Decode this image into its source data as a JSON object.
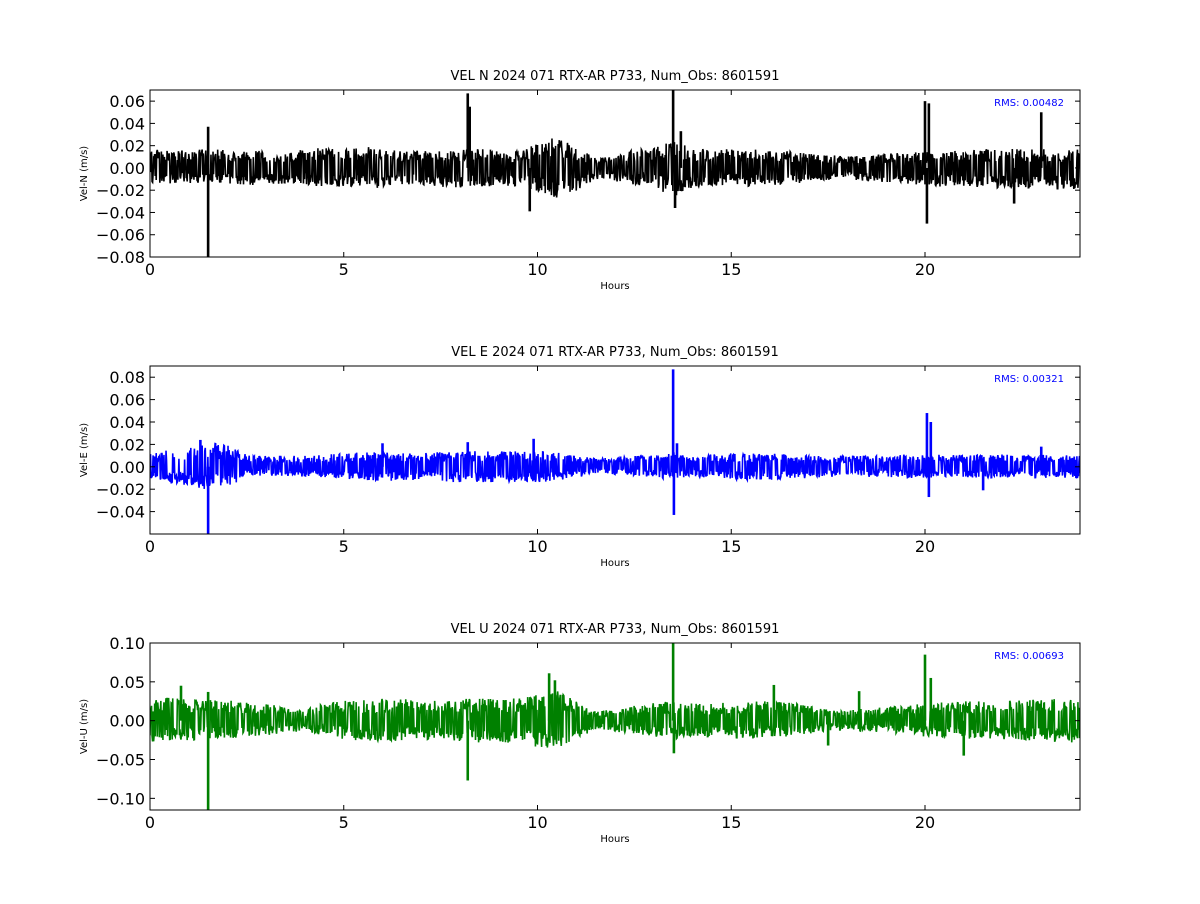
{
  "chart_data": [
    {
      "type": "line",
      "title": "VEL N 2024 071 RTX-AR  P733, Num_Obs: 8601591",
      "xlabel": "Hours",
      "ylabel": "Vel-N (m/s)",
      "xlim": [
        0,
        24
      ],
      "ylim": [
        -0.08,
        0.07
      ],
      "xticks": [
        0,
        5,
        10,
        15,
        20
      ],
      "yticks": [
        -0.08,
        -0.06,
        -0.04,
        -0.02,
        0.0,
        0.02,
        0.04,
        0.06
      ],
      "ytick_labels": [
        "−0.08",
        "−0.06",
        "−0.04",
        "−0.02",
        "0.00",
        "0.02",
        "0.04",
        "0.06"
      ],
      "color": "#000000",
      "annotation": "RMS:  0.00482",
      "rms": 0.00482,
      "envelope": {
        "x": [
          0,
          0.5,
          1,
          1.5,
          2,
          2.5,
          3,
          3.5,
          4,
          4.5,
          5,
          5.5,
          6,
          6.5,
          7,
          7.5,
          8,
          8.5,
          9,
          9.5,
          10,
          10.5,
          11,
          11.5,
          12,
          12.5,
          13,
          13.5,
          14,
          14.5,
          15,
          15.5,
          16,
          16.5,
          17,
          17.5,
          18,
          18.5,
          19,
          19.5,
          20,
          20.5,
          21,
          21.5,
          22,
          22.5,
          23,
          23.5,
          24
        ],
        "upper": [
          0.017,
          0.016,
          0.016,
          0.017,
          0.016,
          0.016,
          0.015,
          0.014,
          0.017,
          0.018,
          0.018,
          0.019,
          0.019,
          0.015,
          0.016,
          0.016,
          0.017,
          0.017,
          0.016,
          0.015,
          0.022,
          0.028,
          0.02,
          0.009,
          0.013,
          0.016,
          0.018,
          0.025,
          0.018,
          0.016,
          0.017,
          0.017,
          0.016,
          0.015,
          0.013,
          0.012,
          0.011,
          0.012,
          0.013,
          0.014,
          0.015,
          0.016,
          0.016,
          0.017,
          0.017,
          0.017,
          0.017,
          0.017,
          0.017
        ],
        "lower": [
          -0.013,
          -0.014,
          -0.014,
          -0.014,
          -0.014,
          -0.016,
          -0.015,
          -0.014,
          -0.015,
          -0.017,
          -0.017,
          -0.018,
          -0.018,
          -0.016,
          -0.016,
          -0.017,
          -0.018,
          -0.017,
          -0.016,
          -0.016,
          -0.022,
          -0.027,
          -0.021,
          -0.01,
          -0.012,
          -0.015,
          -0.018,
          -0.026,
          -0.018,
          -0.016,
          -0.016,
          -0.017,
          -0.016,
          -0.015,
          -0.012,
          -0.011,
          -0.01,
          -0.012,
          -0.013,
          -0.014,
          -0.016,
          -0.017,
          -0.017,
          -0.018,
          -0.018,
          -0.018,
          -0.018,
          -0.019,
          -0.019
        ]
      },
      "spikes": [
        {
          "x": 1.5,
          "y": 0.037
        },
        {
          "x": 1.5,
          "y": -0.08
        },
        {
          "x": 8.2,
          "y": 0.067
        },
        {
          "x": 8.25,
          "y": 0.055
        },
        {
          "x": 9.8,
          "y": -0.039
        },
        {
          "x": 13.5,
          "y": 0.071
        },
        {
          "x": 13.55,
          "y": -0.036
        },
        {
          "x": 13.7,
          "y": 0.033
        },
        {
          "x": 20.0,
          "y": 0.06
        },
        {
          "x": 20.05,
          "y": -0.05
        },
        {
          "x": 20.1,
          "y": 0.058
        },
        {
          "x": 22.3,
          "y": -0.032
        },
        {
          "x": 23.0,
          "y": 0.05
        }
      ]
    },
    {
      "type": "line",
      "title": "VEL E 2024 071 RTX-AR  P733, Num_Obs: 8601591",
      "xlabel": "Hours",
      "ylabel": "Vel-E (m/s)",
      "xlim": [
        0,
        24
      ],
      "ylim": [
        -0.06,
        0.09
      ],
      "xticks": [
        0,
        5,
        10,
        15,
        20
      ],
      "yticks": [
        -0.04,
        -0.02,
        0.0,
        0.02,
        0.04,
        0.06,
        0.08
      ],
      "ytick_labels": [
        "−0.04",
        "−0.02",
        "0.00",
        "0.02",
        "0.04",
        "0.06",
        "0.08"
      ],
      "color": "#0000ff",
      "annotation": "RMS:  0.00321",
      "rms": 0.00321,
      "envelope": {
        "x": [
          0,
          0.5,
          1,
          1.5,
          2,
          2.5,
          3,
          3.5,
          4,
          4.5,
          5,
          5.5,
          6,
          6.5,
          7,
          7.5,
          8,
          8.5,
          9,
          9.5,
          10,
          10.5,
          11,
          11.5,
          12,
          12.5,
          13,
          13.5,
          14,
          14.5,
          15,
          15.5,
          16,
          16.5,
          17,
          17.5,
          18,
          18.5,
          19,
          19.5,
          20,
          20.5,
          21,
          21.5,
          22,
          22.5,
          23,
          23.5,
          24
        ],
        "upper": [
          0.012,
          0.015,
          0.018,
          0.022,
          0.019,
          0.011,
          0.01,
          0.01,
          0.01,
          0.011,
          0.012,
          0.013,
          0.013,
          0.012,
          0.013,
          0.013,
          0.014,
          0.014,
          0.014,
          0.014,
          0.014,
          0.013,
          0.01,
          0.008,
          0.009,
          0.01,
          0.011,
          0.013,
          0.01,
          0.011,
          0.012,
          0.012,
          0.012,
          0.011,
          0.01,
          0.01,
          0.01,
          0.01,
          0.01,
          0.011,
          0.011,
          0.011,
          0.011,
          0.011,
          0.011,
          0.01,
          0.011,
          0.011,
          0.011
        ],
        "lower": [
          -0.01,
          -0.014,
          -0.017,
          -0.021,
          -0.018,
          -0.009,
          -0.008,
          -0.008,
          -0.009,
          -0.01,
          -0.011,
          -0.012,
          -0.013,
          -0.012,
          -0.012,
          -0.013,
          -0.014,
          -0.014,
          -0.014,
          -0.014,
          -0.014,
          -0.013,
          -0.01,
          -0.006,
          -0.007,
          -0.008,
          -0.009,
          -0.012,
          -0.009,
          -0.01,
          -0.011,
          -0.012,
          -0.012,
          -0.011,
          -0.01,
          -0.009,
          -0.009,
          -0.009,
          -0.009,
          -0.01,
          -0.01,
          -0.01,
          -0.01,
          -0.01,
          -0.01,
          -0.009,
          -0.01,
          -0.01,
          -0.01
        ]
      },
      "spikes": [
        {
          "x": 1.5,
          "y": -0.06
        },
        {
          "x": 1.3,
          "y": 0.024
        },
        {
          "x": 6.0,
          "y": 0.021
        },
        {
          "x": 8.2,
          "y": 0.022
        },
        {
          "x": 9.9,
          "y": 0.025
        },
        {
          "x": 13.5,
          "y": 0.087
        },
        {
          "x": 13.52,
          "y": -0.043
        },
        {
          "x": 13.6,
          "y": 0.021
        },
        {
          "x": 20.05,
          "y": 0.048
        },
        {
          "x": 20.1,
          "y": -0.027
        },
        {
          "x": 20.15,
          "y": 0.04
        },
        {
          "x": 21.5,
          "y": -0.021
        },
        {
          "x": 23.0,
          "y": 0.018
        }
      ]
    },
    {
      "type": "line",
      "title": "VEL U 2024 071 RTX-AR  P733, Num_Obs: 8601591",
      "xlabel": "Hours",
      "ylabel": "Vel-U (m/s)",
      "xlim": [
        0,
        24
      ],
      "ylim": [
        -0.115,
        0.1
      ],
      "xticks": [
        0,
        5,
        10,
        15,
        20
      ],
      "yticks": [
        -0.1,
        -0.05,
        0.0,
        0.05,
        0.1
      ],
      "ytick_labels": [
        "−0.10",
        "−0.05",
        "0.00",
        "0.05",
        "0.10"
      ],
      "color": "#008000",
      "annotation": "RMS:  0.00693",
      "rms": 0.00693,
      "envelope": {
        "x": [
          0,
          0.5,
          1,
          1.5,
          2,
          2.5,
          3,
          3.5,
          4,
          4.5,
          5,
          5.5,
          6,
          6.5,
          7,
          7.5,
          8,
          8.5,
          9,
          9.5,
          10,
          10.5,
          11,
          11.5,
          12,
          12.5,
          13,
          13.5,
          14,
          14.5,
          15,
          15.5,
          16,
          16.5,
          17,
          17.5,
          18,
          18.5,
          19,
          19.5,
          20,
          20.5,
          21,
          21.5,
          22,
          22.5,
          23,
          23.5,
          24
        ],
        "upper": [
          0.03,
          0.03,
          0.028,
          0.027,
          0.026,
          0.024,
          0.022,
          0.019,
          0.014,
          0.022,
          0.026,
          0.027,
          0.028,
          0.028,
          0.026,
          0.026,
          0.028,
          0.029,
          0.029,
          0.03,
          0.036,
          0.04,
          0.025,
          0.012,
          0.016,
          0.02,
          0.023,
          0.025,
          0.022,
          0.022,
          0.024,
          0.025,
          0.026,
          0.024,
          0.019,
          0.014,
          0.014,
          0.016,
          0.018,
          0.02,
          0.022,
          0.024,
          0.025,
          0.025,
          0.026,
          0.027,
          0.028,
          0.029,
          0.03
        ],
        "lower": [
          -0.027,
          -0.026,
          -0.025,
          -0.024,
          -0.023,
          -0.021,
          -0.019,
          -0.016,
          -0.013,
          -0.02,
          -0.024,
          -0.026,
          -0.027,
          -0.026,
          -0.025,
          -0.025,
          -0.027,
          -0.028,
          -0.028,
          -0.03,
          -0.034,
          -0.036,
          -0.024,
          -0.011,
          -0.014,
          -0.018,
          -0.021,
          -0.024,
          -0.02,
          -0.021,
          -0.022,
          -0.023,
          -0.023,
          -0.021,
          -0.017,
          -0.013,
          -0.012,
          -0.014,
          -0.016,
          -0.018,
          -0.021,
          -0.022,
          -0.023,
          -0.024,
          -0.025,
          -0.026,
          -0.027,
          -0.028,
          -0.028
        ]
      },
      "spikes": [
        {
          "x": 0.8,
          "y": 0.045
        },
        {
          "x": 1.5,
          "y": 0.037
        },
        {
          "x": 1.5,
          "y": -0.115
        },
        {
          "x": 8.2,
          "y": -0.077
        },
        {
          "x": 10.3,
          "y": 0.061
        },
        {
          "x": 10.45,
          "y": 0.052
        },
        {
          "x": 13.5,
          "y": 0.1
        },
        {
          "x": 13.52,
          "y": -0.042
        },
        {
          "x": 16.1,
          "y": 0.046
        },
        {
          "x": 17.5,
          "y": -0.032
        },
        {
          "x": 18.3,
          "y": 0.038
        },
        {
          "x": 20.0,
          "y": 0.085
        },
        {
          "x": 20.15,
          "y": 0.055
        },
        {
          "x": 21.0,
          "y": -0.045
        }
      ]
    }
  ]
}
